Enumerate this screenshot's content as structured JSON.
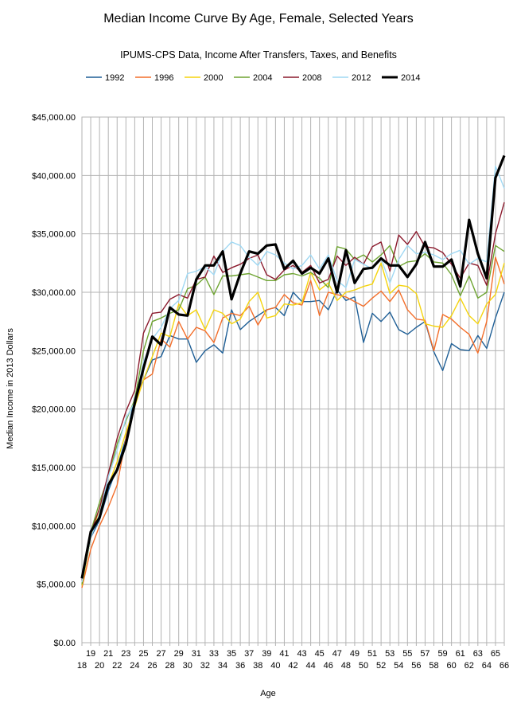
{
  "chart_data": {
    "type": "line",
    "title": "Median Income Curve By Age, Female, Selected Years",
    "subtitle": "IPUMS-CPS Data, Income After Transfers, Taxes, and Benefits",
    "xlabel": "Age",
    "ylabel": "Median Income in 2013 Dollars",
    "xlim": [
      18,
      66
    ],
    "ylim": [
      0,
      45000
    ],
    "yticks": [
      0,
      5000,
      10000,
      15000,
      20000,
      25000,
      30000,
      35000,
      40000,
      45000
    ],
    "ytick_labels": [
      "$0.00",
      "$5,000.00",
      "$10,000.00",
      "$15,000.00",
      "$20,000.00",
      "$25,000.00",
      "$30,000.00",
      "$35,000.00",
      "$40,000.00",
      "$45,000.00"
    ],
    "grid": true,
    "legend_position": "top",
    "x": [
      18,
      19,
      20,
      21,
      22,
      23,
      24,
      25,
      26,
      27,
      28,
      29,
      30,
      31,
      32,
      33,
      34,
      35,
      36,
      37,
      38,
      39,
      40,
      41,
      42,
      43,
      44,
      45,
      46,
      47,
      48,
      49,
      50,
      51,
      52,
      53,
      54,
      55,
      56,
      57,
      58,
      59,
      60,
      61,
      62,
      63,
      64,
      65,
      66
    ],
    "series": [
      {
        "name": "1992",
        "color": "#1f5f96",
        "values": [
          4900,
          9000,
          10500,
          13000,
          15000,
          17500,
          21000,
          22500,
          24200,
          24500,
          26300,
          26000,
          26000,
          24000,
          25000,
          25500,
          24800,
          28500,
          26800,
          27500,
          28000,
          28500,
          28700,
          28000,
          30000,
          29200,
          29200,
          29300,
          28500,
          30200,
          29300,
          29600,
          25700,
          28200,
          27500,
          28300,
          26800,
          26400,
          27000,
          27500,
          24900,
          23300,
          25600,
          25100,
          25000,
          26300,
          25200,
          27800,
          30000
        ]
      },
      {
        "name": "1996",
        "color": "#f36e2a",
        "values": [
          4700,
          8000,
          10000,
          11600,
          13500,
          17500,
          20500,
          22500,
          23000,
          26000,
          25300,
          27500,
          26000,
          27000,
          26700,
          25700,
          27800,
          28200,
          28000,
          28800,
          27200,
          28500,
          28700,
          29800,
          29100,
          28900,
          31000,
          28000,
          30000,
          29800,
          29600,
          29200,
          28800,
          29500,
          30100,
          29200,
          30200,
          28500,
          27700,
          27600,
          25000,
          28100,
          27700,
          27000,
          26400,
          24800,
          27500,
          33000,
          30700
        ]
      },
      {
        "name": "2000",
        "color": "#f5d40e",
        "values": [
          4900,
          9000,
          11500,
          13500,
          15500,
          18000,
          20200,
          22500,
          24500,
          26500,
          26200,
          29000,
          28000,
          28500,
          26800,
          28500,
          28200,
          27300,
          27700,
          29200,
          30000,
          27800,
          28000,
          29000,
          28900,
          29100,
          31700,
          30200,
          30800,
          29300,
          30000,
          30200,
          30500,
          30700,
          32500,
          29900,
          30600,
          30500,
          29900,
          27300,
          27100,
          27000,
          28000,
          29500,
          28000,
          27300,
          29000,
          29800,
          32500
        ]
      },
      {
        "name": "2004",
        "color": "#6ea431",
        "values": [
          5000,
          9500,
          12000,
          14200,
          17000,
          19000,
          20800,
          25000,
          27500,
          27800,
          28200,
          28500,
          30300,
          30600,
          31300,
          29800,
          31400,
          31400,
          31500,
          31600,
          31300,
          31000,
          31000,
          31500,
          31600,
          31400,
          31700,
          31200,
          30400,
          33900,
          33700,
          32800,
          33200,
          32600,
          33200,
          34000,
          32200,
          32600,
          32700,
          33300,
          32600,
          32500,
          31500,
          29700,
          31400,
          29500,
          30000,
          34000,
          33500
        ]
      },
      {
        "name": "2008",
        "color": "#8b1a2d",
        "values": [
          5300,
          9400,
          11500,
          14500,
          17500,
          19800,
          21600,
          26500,
          28200,
          28300,
          29400,
          29800,
          29500,
          31100,
          31300,
          33100,
          31700,
          32100,
          32400,
          32900,
          33200,
          31500,
          31100,
          31900,
          32300,
          31700,
          32300,
          30800,
          31100,
          33100,
          32300,
          33000,
          32400,
          33900,
          34300,
          31800,
          34900,
          34100,
          35200,
          33900,
          33800,
          33400,
          32400,
          31200,
          32500,
          32300,
          30600,
          35000,
          37700
        ]
      },
      {
        "name": "2012",
        "color": "#9fd8f3",
        "values": [
          5200,
          9000,
          11000,
          14200,
          16500,
          19200,
          20600,
          24000,
          26000,
          27000,
          28600,
          29300,
          31600,
          31800,
          32200,
          31500,
          33500,
          34300,
          34000,
          33000,
          32300,
          33500,
          33200,
          32500,
          32000,
          32300,
          33200,
          32000,
          33200,
          31000,
          30400,
          32800,
          32400,
          32000,
          32900,
          30800,
          32800,
          34000,
          33300,
          33400,
          33200,
          32800,
          33300,
          33600,
          32400,
          32900,
          32600,
          40800,
          38900
        ]
      },
      {
        "name": "2014",
        "color": "#000000",
        "values": [
          5500,
          9500,
          10700,
          13500,
          14800,
          17000,
          20500,
          23500,
          26200,
          25500,
          28700,
          28100,
          28000,
          31100,
          32300,
          32300,
          33500,
          29400,
          31600,
          33500,
          33300,
          34000,
          34100,
          32000,
          32700,
          31600,
          32100,
          31600,
          32900,
          30000,
          33600,
          30800,
          32000,
          32100,
          32900,
          32300,
          32300,
          31300,
          32400,
          34300,
          32200,
          32200,
          32800,
          30500,
          36200,
          33300,
          31200,
          39800,
          41700
        ]
      }
    ]
  }
}
